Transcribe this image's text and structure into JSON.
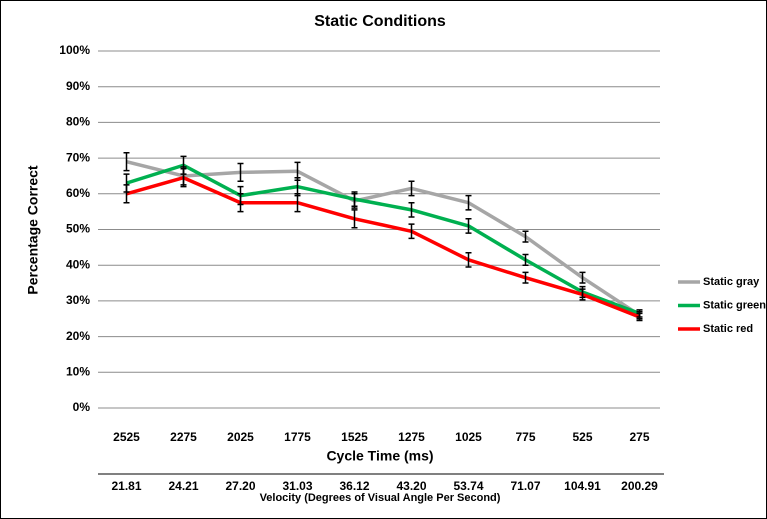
{
  "chart_data": {
    "type": "line",
    "title": "Static Conditions",
    "ylabel": "Percentage Correct",
    "xlabel": "Cycle Time (ms)",
    "x2label": "Velocity (Degrees of Visual Angle Per Second)",
    "categories": [
      "2525",
      "2275",
      "2025",
      "1775",
      "1525",
      "1275",
      "1025",
      "775",
      "525",
      "275"
    ],
    "x2_categories": [
      "21.81",
      "24.21",
      "27.20",
      "31.03",
      "36.12",
      "43.20",
      "53.74",
      "71.07",
      "104.91",
      "200.29"
    ],
    "ylim": [
      0,
      100
    ],
    "yticks": [
      {
        "value": 0,
        "label": "0%"
      },
      {
        "value": 10,
        "label": "10%"
      },
      {
        "value": 20,
        "label": "20%"
      },
      {
        "value": 30,
        "label": "30%"
      },
      {
        "value": 40,
        "label": "40%"
      },
      {
        "value": 50,
        "label": "50%"
      },
      {
        "value": 60,
        "label": "60%"
      },
      {
        "value": 70,
        "label": "70%"
      },
      {
        "value": 80,
        "label": "80%"
      },
      {
        "value": 90,
        "label": "90%"
      },
      {
        "value": 100,
        "label": "100%"
      }
    ],
    "grid": true,
    "legend": "right",
    "series": [
      {
        "name": "Static gray",
        "color": "#a6a6a6",
        "values": [
          69,
          65,
          66,
          66.3,
          58,
          61.5,
          57.5,
          48,
          36.5,
          26
        ],
        "errors": [
          2.5,
          2.5,
          2.5,
          2.5,
          2,
          2,
          2,
          1.5,
          1.5,
          1
        ]
      },
      {
        "name": "Static green",
        "color": "#00b050",
        "values": [
          63,
          68,
          59.5,
          62,
          58.5,
          55.5,
          51,
          41.5,
          32.5,
          26.5
        ],
        "errors": [
          2.5,
          2.5,
          2.5,
          2.5,
          2,
          2,
          2,
          1.5,
          1.5,
          1
        ]
      },
      {
        "name": "Static red",
        "color": "#ff0000",
        "values": [
          60,
          64.5,
          57.5,
          57.5,
          53,
          49.5,
          41.5,
          36.5,
          31.8,
          25.5
        ],
        "errors": [
          2.5,
          2.5,
          2.5,
          2.5,
          2.5,
          2,
          2,
          1.5,
          1.5,
          1
        ]
      }
    ]
  }
}
